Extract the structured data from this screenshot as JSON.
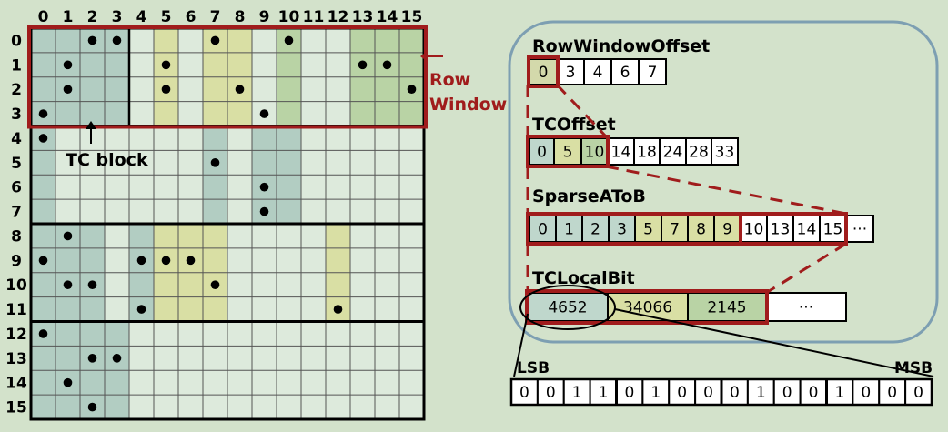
{
  "matrix": {
    "col_labels": [
      "0",
      "1",
      "2",
      "3",
      "4",
      "5",
      "6",
      "7",
      "8",
      "9",
      "10",
      "11",
      "12",
      "13",
      "14",
      "15"
    ],
    "row_labels": [
      "0",
      "1",
      "2",
      "3",
      "4",
      "5",
      "6",
      "7",
      "8",
      "9",
      "10",
      "11",
      "12",
      "13",
      "14",
      "15"
    ],
    "nonzeros": [
      [
        0,
        2
      ],
      [
        0,
        3
      ],
      [
        0,
        7
      ],
      [
        0,
        10
      ],
      [
        1,
        1
      ],
      [
        1,
        5
      ],
      [
        1,
        13
      ],
      [
        1,
        14
      ],
      [
        2,
        1
      ],
      [
        2,
        5
      ],
      [
        2,
        8
      ],
      [
        2,
        15
      ],
      [
        3,
        0
      ],
      [
        3,
        9
      ],
      [
        4,
        0
      ],
      [
        5,
        7
      ],
      [
        6,
        9
      ],
      [
        7,
        9
      ],
      [
        8,
        1
      ],
      [
        9,
        0
      ],
      [
        9,
        4
      ],
      [
        9,
        5
      ],
      [
        9,
        6
      ],
      [
        10,
        1
      ],
      [
        10,
        2
      ],
      [
        10,
        7
      ],
      [
        11,
        4
      ],
      [
        11,
        12
      ],
      [
        12,
        0
      ],
      [
        13,
        2
      ],
      [
        13,
        3
      ],
      [
        14,
        1
      ],
      [
        15,
        2
      ]
    ],
    "colors": {
      "grid_bg": "#ddeadc",
      "blue": "#b2cdc2",
      "yellow": "#d9dfa4",
      "green": "#b9d3a5",
      "highlight": "#a01c1c"
    }
  },
  "labels": {
    "tc_block": "TC block",
    "row_window_line1": "Row",
    "row_window_line2": "Window",
    "lsb": "LSB",
    "msb": "MSB"
  },
  "arrays": {
    "row_window_offset": {
      "title": "RowWindowOffset",
      "values": [
        "0",
        "3",
        "4",
        "6",
        "7"
      ]
    },
    "tc_offset": {
      "title": "TCOffset",
      "values": [
        "0",
        "5",
        "10",
        "14",
        "18",
        "24",
        "28",
        "33"
      ]
    },
    "sparse_a_to_b": {
      "title": "SparseAToB",
      "values": [
        "0",
        "1",
        "2",
        "3",
        "5",
        "7",
        "8",
        "9",
        "10",
        "13",
        "14",
        "15",
        "···"
      ]
    },
    "tc_local_bit": {
      "title": "TCLocalBit",
      "values": [
        "4652",
        "34066",
        "2145",
        "···"
      ]
    },
    "bits": {
      "values": [
        "0",
        "0",
        "1",
        "1",
        "0",
        "1",
        "0",
        "0",
        "0",
        "1",
        "0",
        "0",
        "1",
        "0",
        "0",
        "0"
      ]
    }
  }
}
